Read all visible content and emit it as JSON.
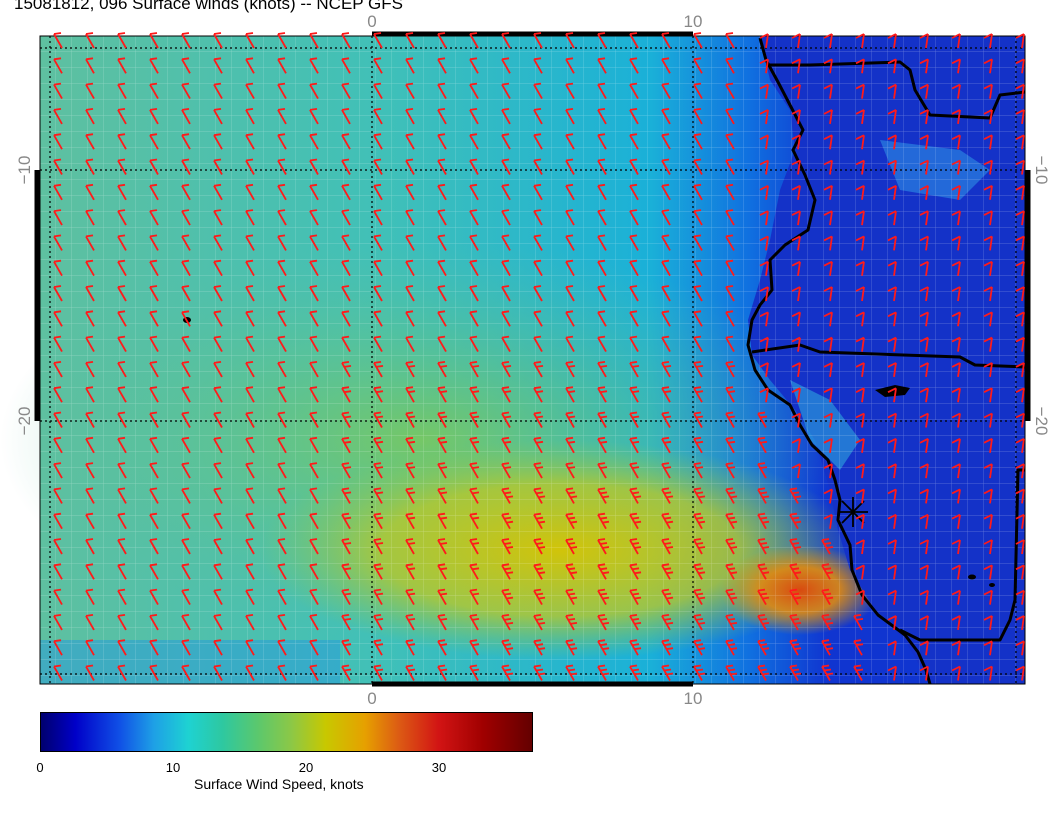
{
  "title": "15081812, 096 Surface winds (knots) -- NCEP GFS",
  "axes": {
    "top": [
      "0",
      "10"
    ],
    "bottom": [
      "0",
      "10"
    ],
    "left": [
      "−10",
      "−20"
    ],
    "right": [
      "−10",
      "−20"
    ]
  },
  "colorbar": {
    "label": "Surface Wind Speed, knots",
    "ticks": [
      "0",
      "10",
      "20",
      "30"
    ],
    "range_knots": [
      0,
      37
    ]
  },
  "colors": {
    "barb": "#ff1a1a",
    "coast": "#000000",
    "calm": "#1a3ad8",
    "strong": "#d2c800"
  },
  "icons": [
    "station-star-icon"
  ]
}
